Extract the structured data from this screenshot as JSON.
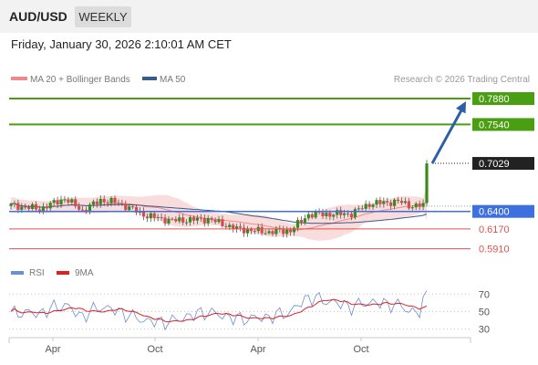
{
  "header": {
    "symbol": "AUD/USD",
    "timeframe": "WEEKLY"
  },
  "datetime": "Friday, January 30, 2026 2:10:01 AM CET",
  "legend": {
    "ma20_label": "MA 20 + Bollinger Bands",
    "ma50_label": "MA 50",
    "credit": "Research © 2026 Trading Central"
  },
  "rsi_legend": {
    "rsi_label": "RSI",
    "ma_label": "9MA"
  },
  "colors": {
    "green": "#4a9e12",
    "blue": "#3d6fe0",
    "red": "#e05050",
    "candle_up": "#3a8a1a",
    "candle_down": "#d94a4a",
    "arrow": "#2e5fa6",
    "band": "#f9dcdc",
    "ma20": "#f08a8a",
    "ma50": "#3a5a8c"
  },
  "chart_data": [
    {
      "type": "candlestick",
      "ylim": [
        0.575,
        0.8
      ],
      "current_price": "0.7029",
      "x_tick_labels": [
        "Apr",
        "Oct",
        "Apr",
        "Oct"
      ],
      "levels": [
        {
          "value": 0.788,
          "label": "0.7880",
          "kind": "resistance"
        },
        {
          "value": 0.754,
          "label": "0.7540",
          "kind": "resistance"
        },
        {
          "value": 0.703,
          "label": "0.7029",
          "kind": "current"
        },
        {
          "value": 0.64,
          "label": "0.6400",
          "kind": "pivot"
        },
        {
          "value": 0.617,
          "label": "0.6170",
          "kind": "support"
        },
        {
          "value": 0.591,
          "label": "0.5910",
          "kind": "support"
        }
      ],
      "projection": {
        "from": 0.703,
        "to": 0.788
      },
      "series": [
        {
          "name": "MA 20 + Bollinger Bands"
        },
        {
          "name": "MA 50"
        }
      ]
    },
    {
      "type": "line",
      "ylim": [
        22,
        85
      ],
      "y_tick_labels": [
        "70",
        "50",
        "30"
      ],
      "series": [
        {
          "name": "RSI"
        },
        {
          "name": "9MA"
        }
      ]
    }
  ]
}
